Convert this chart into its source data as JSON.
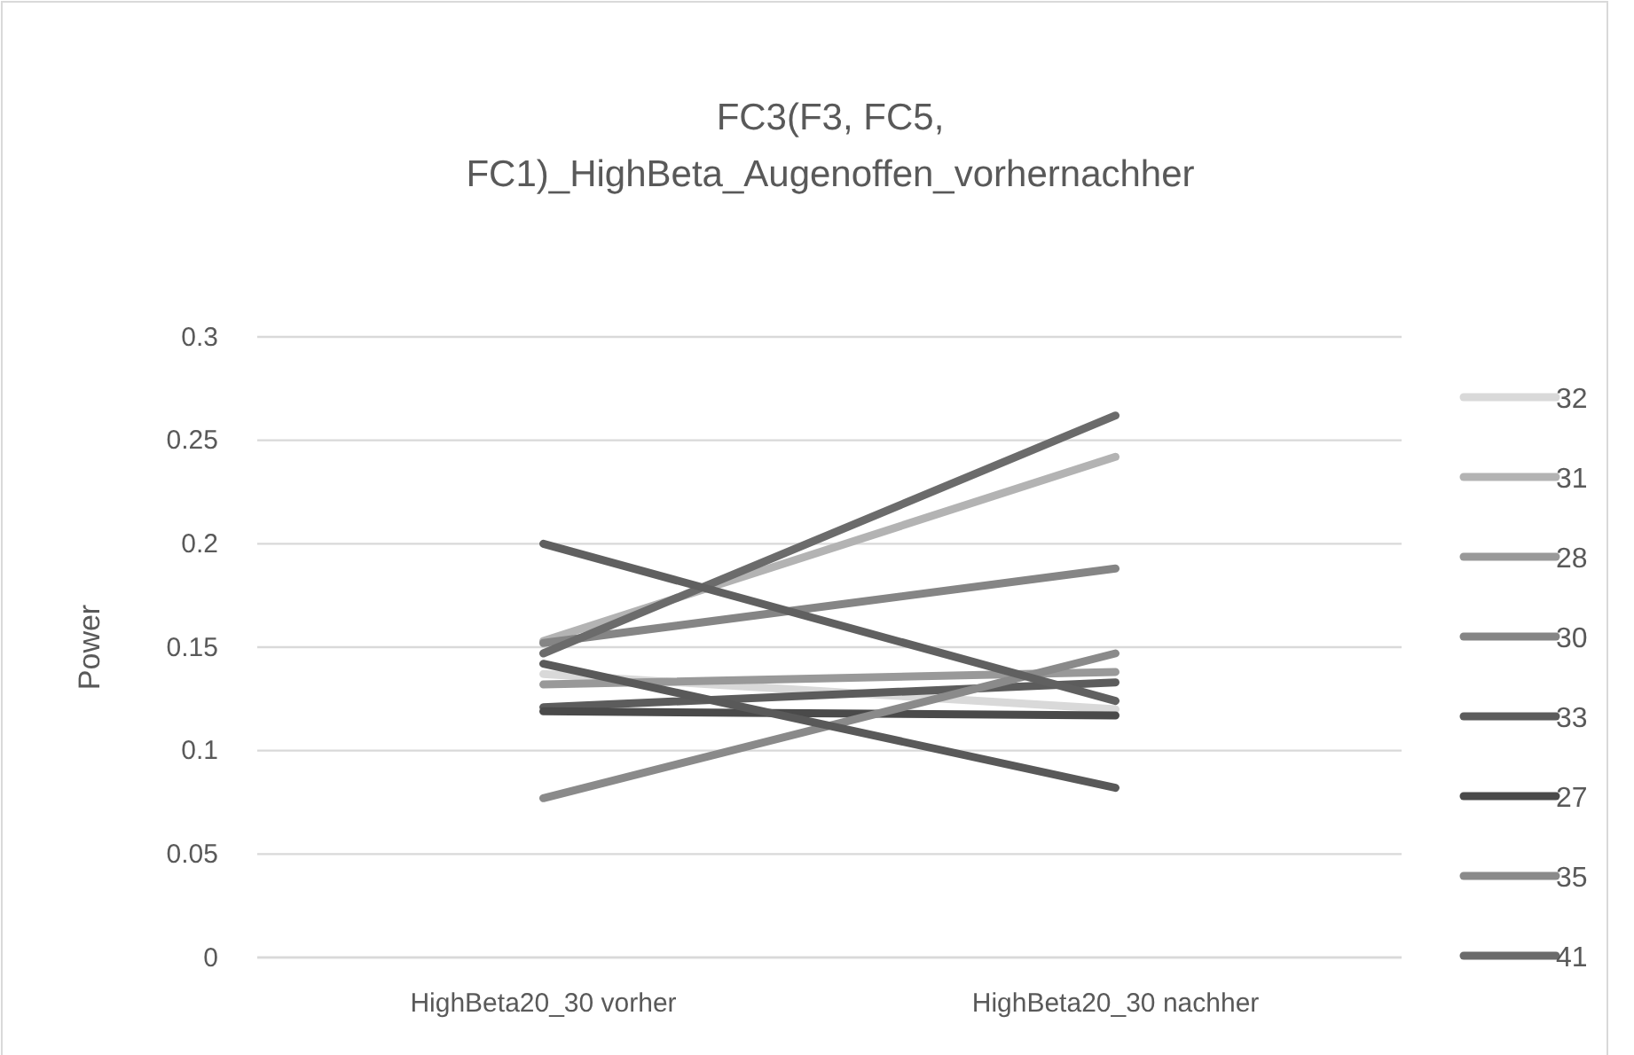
{
  "chart_data": {
    "type": "line",
    "title": "FC3(F3, FC5, FC1)_HighBeta_Augenoffen_vorhernachher",
    "ylabel": "Power",
    "categories": [
      "HighBeta20_30 vorher",
      "HighBeta20_30 nachher"
    ],
    "ylim": [
      0,
      0.3
    ],
    "yticks": [
      0,
      0.05,
      0.1,
      0.15,
      0.2,
      0.25,
      0.3
    ],
    "grid": "y",
    "legend": "right",
    "marker": "none",
    "series": [
      {
        "name": "32",
        "color": "#d9d9d9",
        "values": [
          0.137,
          0.12
        ]
      },
      {
        "name": "31",
        "color": "#b3b3b3",
        "values": [
          0.153,
          0.242
        ]
      },
      {
        "name": "28",
        "color": "#999999",
        "values": [
          0.132,
          0.138
        ]
      },
      {
        "name": "30",
        "color": "#858585",
        "values": [
          0.152,
          0.188
        ]
      },
      {
        "name": "33",
        "color": "#5c5c5c",
        "values": [
          0.121,
          0.133
        ]
      },
      {
        "name": "27",
        "color": "#4a4a4a",
        "values": [
          0.119,
          0.117
        ]
      },
      {
        "name": "35",
        "color": "#8a8a8a",
        "values": [
          0.077,
          0.147
        ]
      },
      {
        "name": "41",
        "color": "#6b6b6b",
        "values": [
          0.147,
          0.262
        ]
      },
      {
        "color": "#606060",
        "values": [
          0.2,
          0.124
        ]
      },
      {
        "color": "#595959",
        "values": [
          0.142,
          0.082
        ]
      }
    ]
  }
}
